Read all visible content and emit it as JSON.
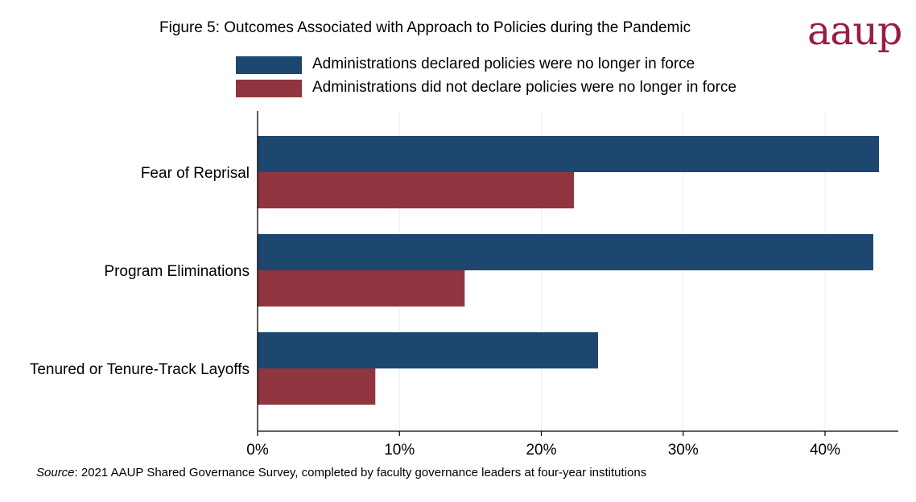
{
  "title": "Figure 5: Outcomes Associated with Approach to Policies during the Pandemic",
  "logo_text": "aaup",
  "colors": {
    "series1": "#1d476f",
    "series2": "#903540",
    "logo": "#9a1b45",
    "grid": "#e7efef"
  },
  "source": {
    "label": "Source",
    "text": ": 2021 AAUP Shared Governance Survey, completed by faculty governance leaders at four-year institutions"
  },
  "chart_data": {
    "type": "bar",
    "orientation": "horizontal",
    "categories": [
      "Fear of Reprisal",
      "Program Eliminations",
      "Tenured or Tenure-Track Layoffs"
    ],
    "series": [
      {
        "name": "Administrations declared policies were no longer in force",
        "values": [
          43.8,
          43.4,
          24.0
        ]
      },
      {
        "name": "Administrations did not declare policies were no longer in force",
        "values": [
          22.3,
          14.6,
          8.3
        ]
      }
    ],
    "xticks": [
      "0%",
      "10%",
      "20%",
      "30%",
      "40%"
    ],
    "xtick_values": [
      0,
      10,
      20,
      30,
      40
    ],
    "xlim": [
      0,
      45
    ],
    "grid": true,
    "legend_position": "top"
  }
}
